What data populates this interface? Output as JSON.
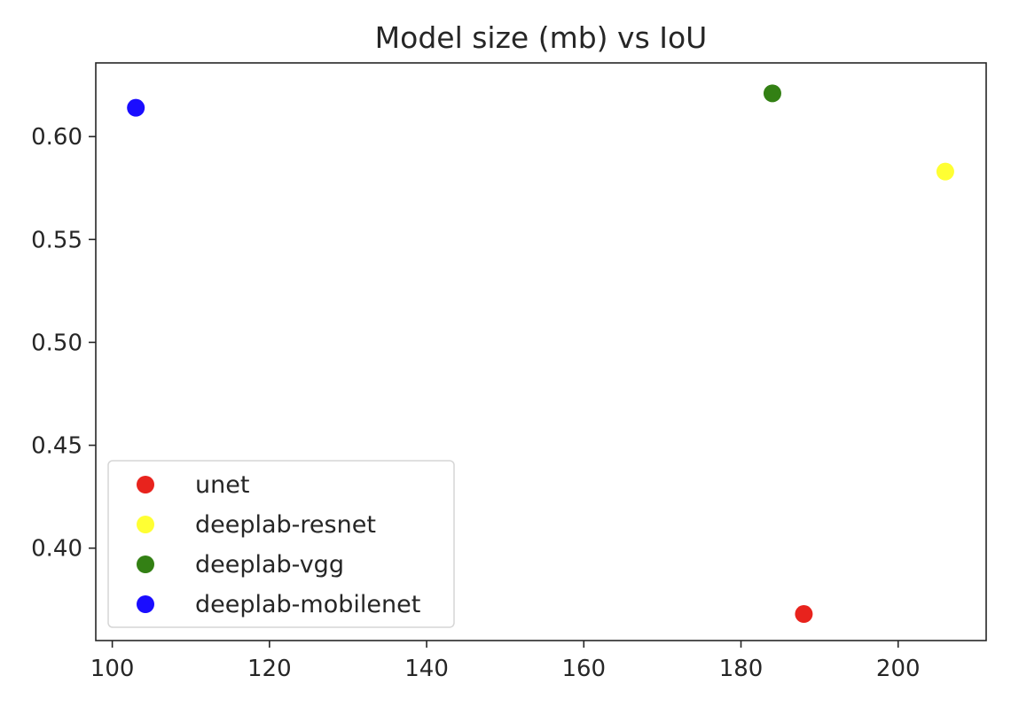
{
  "chart_data": {
    "type": "scatter",
    "title": "Model size (mb) vs IoU",
    "xlabel": "",
    "ylabel": "",
    "xlim": [
      97.9,
      211.2
    ],
    "ylim": [
      0.3551,
      0.6358
    ],
    "x_ticks": [
      100,
      120,
      140,
      160,
      180,
      200
    ],
    "y_ticks": [
      0.4,
      0.45,
      0.5,
      0.55,
      0.6
    ],
    "x_tick_labels": [
      "100",
      "120",
      "140",
      "160",
      "180",
      "200"
    ],
    "y_tick_labels": [
      "0.40",
      "0.45",
      "0.50",
      "0.55",
      "0.60"
    ],
    "grid": false,
    "legend_position": "lower-left",
    "series": [
      {
        "name": "unet",
        "color": "#e8231d",
        "x": [
          188
        ],
        "y": [
          0.368
        ]
      },
      {
        "name": "deeplab-resnet",
        "color": "#ffff33",
        "x": [
          206
        ],
        "y": [
          0.583
        ]
      },
      {
        "name": "deeplab-vgg",
        "color": "#338014",
        "x": [
          184
        ],
        "y": [
          0.621
        ]
      },
      {
        "name": "deeplab-mobilenet",
        "color": "#1a0dff",
        "x": [
          103
        ],
        "y": [
          0.614
        ]
      }
    ]
  }
}
